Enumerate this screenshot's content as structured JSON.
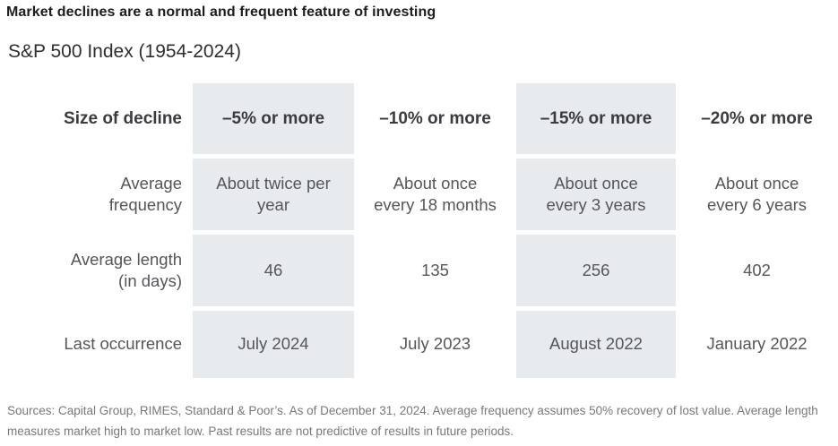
{
  "header": {
    "title": "Market declines are a normal and frequent feature of investing",
    "subtitle": "S&P 500 Index (1954-2024)"
  },
  "table": {
    "corner_label": "Size of decline",
    "columns": [
      "–5% or more",
      "–10% or more",
      "–15% or more",
      "–20% or more"
    ],
    "rows": [
      {
        "label": "Average frequency",
        "values": [
          "About twice per year",
          "About once every 18 months",
          "About once every 3 years",
          "About once every 6 years"
        ]
      },
      {
        "label": "Average length (in days)",
        "values": [
          "46",
          "135",
          "256",
          "402"
        ]
      },
      {
        "label": "Last occurrence",
        "values": [
          "July 2024",
          "July 2023",
          "August 2022",
          "January 2022"
        ]
      }
    ]
  },
  "footer": {
    "text": "Sources: Capital Group, RIMES, Standard & Poor’s. As of December 31, 2024. Average frequency assumes 50% recovery of lost value. Average length measures market high to market low. Past results are not predictive of results in future periods."
  },
  "colors": {
    "highlight_column_background": "#e8ebee",
    "title_text": "#1c1c1c",
    "body_text": "#55565a",
    "header_text": "#3a3b3f",
    "footer_text": "#77787b"
  },
  "chart_data": {
    "type": "table",
    "title": "Market declines are a normal and frequent feature of investing",
    "subtitle": "S&P 500 Index (1954-2024)",
    "columns": [
      "Size of decline",
      "–5% or more",
      "–10% or more",
      "–15% or more",
      "–20% or more"
    ],
    "rows": [
      [
        "Average frequency",
        "About twice per year",
        "About once every 18 months",
        "About once every 3 years",
        "About once every 6 years"
      ],
      [
        "Average length (in days)",
        "46",
        "135",
        "256",
        "402"
      ],
      [
        "Last occurrence",
        "July 2024",
        "July 2023",
        "August 2022",
        "January 2022"
      ]
    ],
    "highlighted_columns": [
      "–5% or more",
      "–15% or more"
    ],
    "source_note": "Sources: Capital Group, RIMES, Standard & Poor’s. As of December 31, 2024. Average frequency assumes 50% recovery of lost value. Average length measures market high to market low. Past results are not predictive of results in future periods."
  }
}
